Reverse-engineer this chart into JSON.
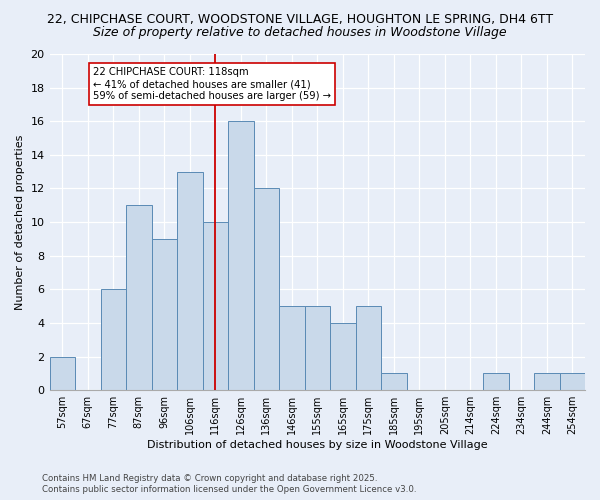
{
  "title1": "22, CHIPCHASE COURT, WOODSTONE VILLAGE, HOUGHTON LE SPRING, DH4 6TT",
  "title2": "Size of property relative to detached houses in Woodstone Village",
  "xlabel": "Distribution of detached houses by size in Woodstone Village",
  "ylabel": "Number of detached properties",
  "categories": [
    "57sqm",
    "67sqm",
    "77sqm",
    "87sqm",
    "96sqm",
    "106sqm",
    "116sqm",
    "126sqm",
    "136sqm",
    "146sqm",
    "155sqm",
    "165sqm",
    "175sqm",
    "185sqm",
    "195sqm",
    "205sqm",
    "214sqm",
    "224sqm",
    "234sqm",
    "244sqm",
    "254sqm"
  ],
  "values": [
    2,
    0,
    6,
    11,
    9,
    13,
    10,
    16,
    12,
    5,
    5,
    4,
    5,
    1,
    0,
    0,
    0,
    1,
    0,
    1,
    1
  ],
  "bar_color": "#c9d9ea",
  "bar_edge_color": "#5a8ab5",
  "vline_x_index": 6,
  "vline_color": "#cc0000",
  "annotation_text": "22 CHIPCHASE COURT: 118sqm\n← 41% of detached houses are smaller (41)\n59% of semi-detached houses are larger (59) →",
  "annotation_box_color": "#ffffff",
  "annotation_box_edge": "#cc0000",
  "ylim": [
    0,
    20
  ],
  "yticks": [
    0,
    2,
    4,
    6,
    8,
    10,
    12,
    14,
    16,
    18,
    20
  ],
  "background_color": "#e8eef8",
  "footer1": "Contains HM Land Registry data © Crown copyright and database right 2025.",
  "footer2": "Contains public sector information licensed under the Open Government Licence v3.0.",
  "grid_color": "#ffffff",
  "title_fontsize": 9,
  "subtitle_fontsize": 9
}
